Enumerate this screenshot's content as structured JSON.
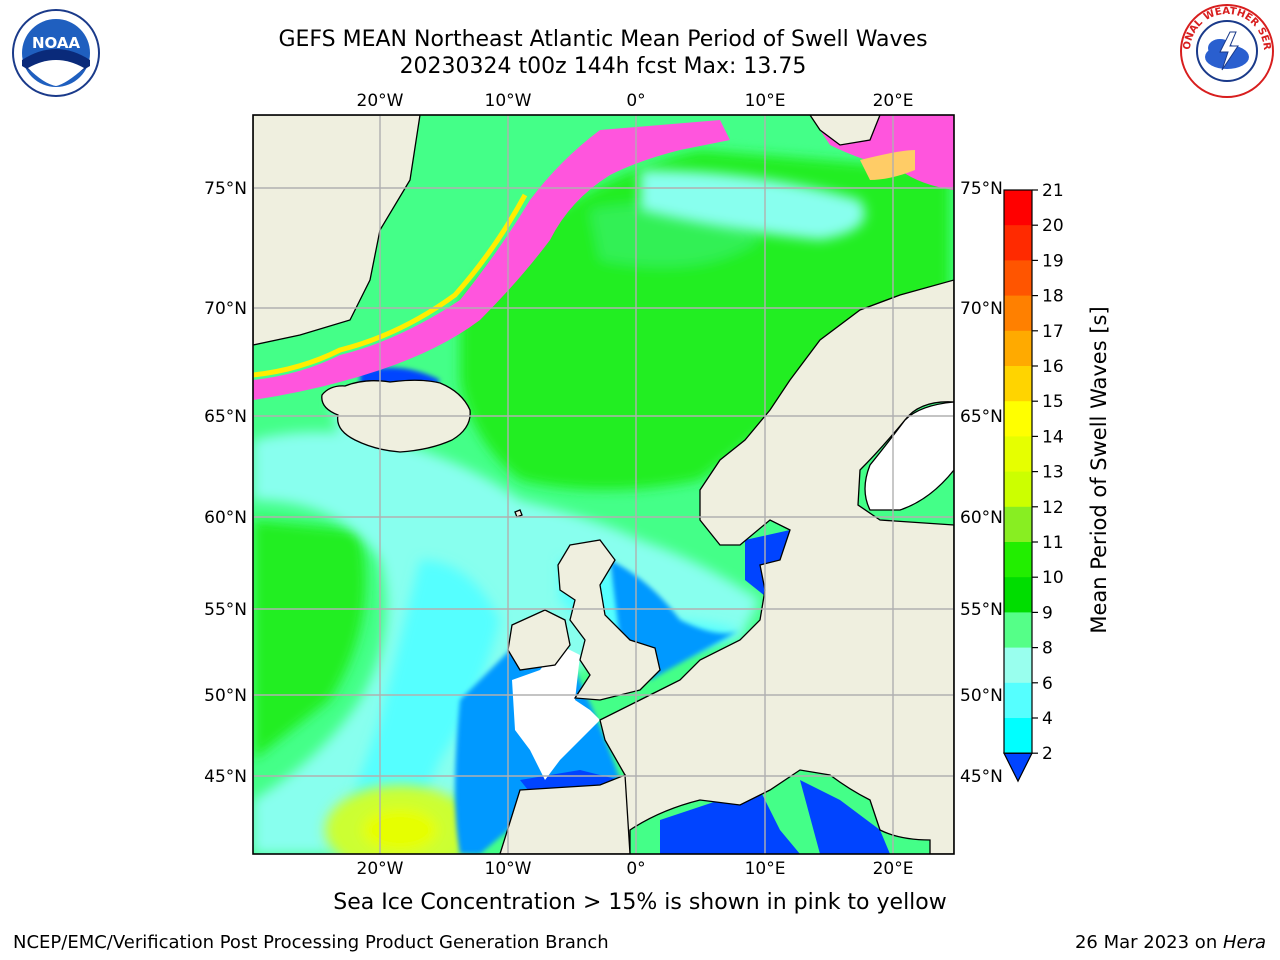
{
  "header": {
    "title_line1": "GEFS MEAN Northeast Atlantic Mean Period of Swell Waves",
    "title_line2": "20230324 t00z 144h fcst   Max: 13.75"
  },
  "logos": {
    "left": "noaa-logo",
    "left_text": "NOAA",
    "right": "national-weather-service-logo",
    "right_text": "NATIONAL WEATHER SERVICE"
  },
  "map": {
    "lon_ticks": [
      "20°W",
      "10°W",
      "0°",
      "10°E",
      "20°E"
    ],
    "lat_ticks": [
      "75°N",
      "70°N",
      "65°N",
      "60°N",
      "55°N",
      "50°N",
      "45°N"
    ],
    "extent": {
      "lon_min": -30,
      "lon_max": 25,
      "lat_min": 41,
      "lat_max": 78
    },
    "land_color": "#efefdf",
    "ocean_base_color": "#44ff88"
  },
  "colorbar": {
    "label": "Mean Period of Swell Waves [s]",
    "ticks": [
      "21",
      "20",
      "19",
      "18",
      "17",
      "16",
      "15",
      "14",
      "13",
      "12",
      "11",
      "10",
      "9",
      "8",
      "6",
      "4",
      "2"
    ],
    "colors": [
      "#ff0000",
      "#ff2a00",
      "#ff5500",
      "#ff8000",
      "#ffaa00",
      "#ffd400",
      "#ffff00",
      "#e6ff00",
      "#ccff00",
      "#88ee22",
      "#22ee00",
      "#00dd00",
      "#55ff88",
      "#99ffee",
      "#55ffff",
      "#00ffff",
      "#0099ff",
      "#0044ff"
    ]
  },
  "notes": {
    "sea_ice": "Sea Ice Concentration > 15% is shown in pink to yellow"
  },
  "footer": {
    "left": "NCEP/EMC/Verification Post Processing Product Generation Branch",
    "right_date": "26 Mar 2023 on ",
    "right_host": "Hera"
  }
}
